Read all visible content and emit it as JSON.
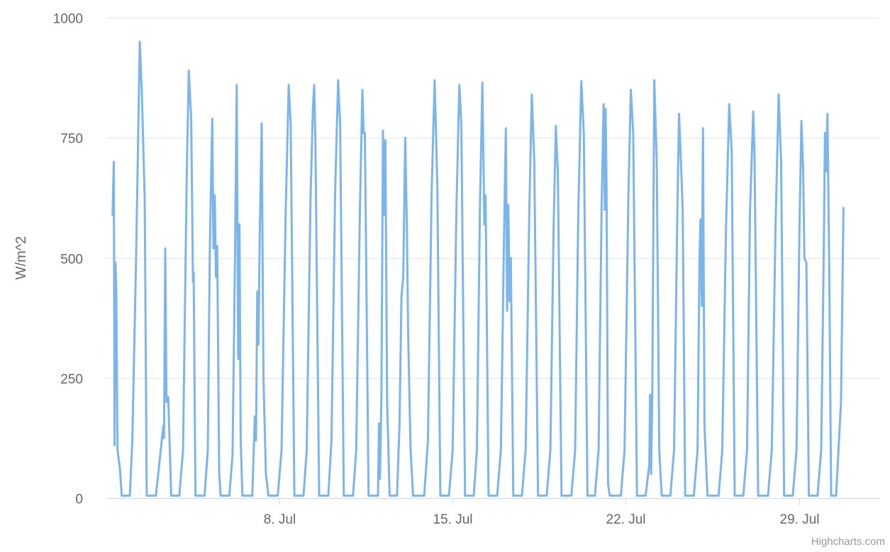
{
  "chart_data": {
    "type": "line",
    "title": "",
    "ylabel": "W/m^2",
    "xlabel": "",
    "ylim": [
      0,
      1000
    ],
    "yticks": [
      0,
      250,
      500,
      750,
      1000
    ],
    "ytick_labels": [
      "0",
      "250",
      "500",
      "750",
      "1000"
    ],
    "x_range_days": [
      1.0,
      32.25
    ],
    "xticks": [
      {
        "day": 8,
        "label": "8. Jul"
      },
      {
        "day": 15,
        "label": "15. Jul"
      },
      {
        "day": 22,
        "label": "22. Jul"
      },
      {
        "day": 29,
        "label": "29. Jul"
      }
    ],
    "grid": true,
    "legend": false,
    "series": [
      {
        "color": "#7cb5ec",
        "points": [
          [
            1.25,
            590
          ],
          [
            1.3,
            700
          ],
          [
            1.33,
            110
          ],
          [
            1.37,
            490
          ],
          [
            1.4,
            430
          ],
          [
            1.45,
            100
          ],
          [
            1.55,
            60
          ],
          [
            1.62,
            5
          ],
          [
            1.95,
            5
          ],
          [
            2.05,
            120
          ],
          [
            2.2,
            500
          ],
          [
            2.35,
            950
          ],
          [
            2.43,
            850
          ],
          [
            2.55,
            620
          ],
          [
            2.63,
            5
          ],
          [
            3.0,
            5
          ],
          [
            3.2,
            100
          ],
          [
            3.3,
            150
          ],
          [
            3.33,
            125
          ],
          [
            3.38,
            520
          ],
          [
            3.43,
            200
          ],
          [
            3.5,
            210
          ],
          [
            3.55,
            130
          ],
          [
            3.62,
            5
          ],
          [
            3.95,
            5
          ],
          [
            4.1,
            100
          ],
          [
            4.25,
            680
          ],
          [
            4.33,
            890
          ],
          [
            4.43,
            790
          ],
          [
            4.5,
            450
          ],
          [
            4.53,
            470
          ],
          [
            4.6,
            5
          ],
          [
            4.97,
            5
          ],
          [
            5.1,
            100
          ],
          [
            5.18,
            510
          ],
          [
            5.28,
            790
          ],
          [
            5.33,
            520
          ],
          [
            5.38,
            630
          ],
          [
            5.43,
            460
          ],
          [
            5.48,
            525
          ],
          [
            5.56,
            50
          ],
          [
            5.62,
            5
          ],
          [
            5.97,
            5
          ],
          [
            6.1,
            90
          ],
          [
            6.2,
            500
          ],
          [
            6.27,
            860
          ],
          [
            6.33,
            290
          ],
          [
            6.38,
            570
          ],
          [
            6.43,
            120
          ],
          [
            6.5,
            5
          ],
          [
            6.9,
            5
          ],
          [
            7.0,
            170
          ],
          [
            7.05,
            120
          ],
          [
            7.1,
            430
          ],
          [
            7.15,
            320
          ],
          [
            7.2,
            550
          ],
          [
            7.28,
            780
          ],
          [
            7.35,
            250
          ],
          [
            7.45,
            50
          ],
          [
            7.55,
            5
          ],
          [
            7.93,
            5
          ],
          [
            8.08,
            100
          ],
          [
            8.25,
            600
          ],
          [
            8.37,
            860
          ],
          [
            8.45,
            780
          ],
          [
            8.6,
            5
          ],
          [
            8.97,
            5
          ],
          [
            9.1,
            100
          ],
          [
            9.25,
            620
          ],
          [
            9.35,
            810
          ],
          [
            9.4,
            860
          ],
          [
            9.45,
            750
          ],
          [
            9.6,
            5
          ],
          [
            9.97,
            5
          ],
          [
            10.1,
            120
          ],
          [
            10.25,
            640
          ],
          [
            10.37,
            870
          ],
          [
            10.45,
            780
          ],
          [
            10.6,
            5
          ],
          [
            10.97,
            5
          ],
          [
            11.1,
            100
          ],
          [
            11.25,
            600
          ],
          [
            11.35,
            850
          ],
          [
            11.4,
            760
          ],
          [
            11.45,
            760
          ],
          [
            11.6,
            5
          ],
          [
            11.98,
            5
          ],
          [
            12.02,
            155
          ],
          [
            12.06,
            40
          ],
          [
            12.12,
            220
          ],
          [
            12.18,
            765
          ],
          [
            12.23,
            590
          ],
          [
            12.28,
            745
          ],
          [
            12.35,
            200
          ],
          [
            12.45,
            5
          ],
          [
            12.75,
            5
          ],
          [
            12.85,
            150
          ],
          [
            12.93,
            420
          ],
          [
            13.0,
            460
          ],
          [
            13.08,
            750
          ],
          [
            13.15,
            560
          ],
          [
            13.2,
            345
          ],
          [
            13.3,
            100
          ],
          [
            13.4,
            5
          ],
          [
            13.85,
            5
          ],
          [
            14.0,
            120
          ],
          [
            14.15,
            640
          ],
          [
            14.27,
            870
          ],
          [
            14.38,
            650
          ],
          [
            14.5,
            5
          ],
          [
            14.85,
            5
          ],
          [
            15.0,
            100
          ],
          [
            15.15,
            600
          ],
          [
            15.27,
            860
          ],
          [
            15.35,
            780
          ],
          [
            15.5,
            5
          ],
          [
            15.85,
            5
          ],
          [
            15.98,
            100
          ],
          [
            16.1,
            600
          ],
          [
            16.2,
            865
          ],
          [
            16.28,
            570
          ],
          [
            16.33,
            630
          ],
          [
            16.45,
            5
          ],
          [
            16.8,
            5
          ],
          [
            16.95,
            100
          ],
          [
            17.08,
            560
          ],
          [
            17.15,
            770
          ],
          [
            17.2,
            390
          ],
          [
            17.25,
            610
          ],
          [
            17.3,
            410
          ],
          [
            17.35,
            500
          ],
          [
            17.45,
            5
          ],
          [
            17.8,
            5
          ],
          [
            17.95,
            100
          ],
          [
            18.1,
            600
          ],
          [
            18.2,
            840
          ],
          [
            18.3,
            700
          ],
          [
            18.45,
            5
          ],
          [
            18.8,
            5
          ],
          [
            18.95,
            100
          ],
          [
            19.08,
            560
          ],
          [
            19.17,
            775
          ],
          [
            19.25,
            680
          ],
          [
            19.4,
            5
          ],
          [
            19.8,
            5
          ],
          [
            19.95,
            100
          ],
          [
            20.08,
            600
          ],
          [
            20.2,
            868
          ],
          [
            20.3,
            760
          ],
          [
            20.45,
            5
          ],
          [
            20.75,
            5
          ],
          [
            20.9,
            100
          ],
          [
            21.02,
            600
          ],
          [
            21.1,
            820
          ],
          [
            21.15,
            600
          ],
          [
            21.18,
            810
          ],
          [
            21.22,
            650
          ],
          [
            21.28,
            30
          ],
          [
            21.35,
            5
          ],
          [
            21.8,
            5
          ],
          [
            21.95,
            100
          ],
          [
            22.1,
            620
          ],
          [
            22.2,
            850
          ],
          [
            22.3,
            760
          ],
          [
            22.45,
            5
          ],
          [
            22.8,
            5
          ],
          [
            22.95,
            70
          ],
          [
            22.98,
            215
          ],
          [
            23.02,
            50
          ],
          [
            23.07,
            215
          ],
          [
            23.15,
            870
          ],
          [
            23.25,
            700
          ],
          [
            23.35,
            100
          ],
          [
            23.45,
            5
          ],
          [
            23.8,
            5
          ],
          [
            23.95,
            100
          ],
          [
            24.08,
            580
          ],
          [
            24.15,
            800
          ],
          [
            24.2,
            740
          ],
          [
            24.3,
            600
          ],
          [
            24.4,
            5
          ],
          [
            24.75,
            5
          ],
          [
            24.9,
            100
          ],
          [
            24.98,
            500
          ],
          [
            25.02,
            580
          ],
          [
            25.07,
            400
          ],
          [
            25.12,
            770
          ],
          [
            25.18,
            150
          ],
          [
            25.3,
            5
          ],
          [
            25.75,
            5
          ],
          [
            25.9,
            100
          ],
          [
            26.05,
            560
          ],
          [
            26.18,
            820
          ],
          [
            26.28,
            720
          ],
          [
            26.4,
            5
          ],
          [
            26.75,
            5
          ],
          [
            26.9,
            100
          ],
          [
            27.02,
            600
          ],
          [
            27.1,
            725
          ],
          [
            27.15,
            805
          ],
          [
            27.2,
            720
          ],
          [
            27.35,
            5
          ],
          [
            27.75,
            5
          ],
          [
            27.9,
            100
          ],
          [
            28.05,
            560
          ],
          [
            28.18,
            840
          ],
          [
            28.28,
            700
          ],
          [
            28.4,
            5
          ],
          [
            28.75,
            5
          ],
          [
            28.9,
            100
          ],
          [
            29.02,
            560
          ],
          [
            29.1,
            785
          ],
          [
            29.17,
            680
          ],
          [
            29.22,
            500
          ],
          [
            29.3,
            490
          ],
          [
            29.4,
            5
          ],
          [
            29.75,
            5
          ],
          [
            29.9,
            100
          ],
          [
            30.0,
            500
          ],
          [
            30.05,
            760
          ],
          [
            30.1,
            680
          ],
          [
            30.15,
            800
          ],
          [
            30.22,
            500
          ],
          [
            30.3,
            5
          ],
          [
            30.5,
            5
          ],
          [
            30.7,
            200
          ],
          [
            30.8,
            604
          ]
        ]
      }
    ]
  },
  "credits": {
    "text": "Highcharts.com"
  }
}
